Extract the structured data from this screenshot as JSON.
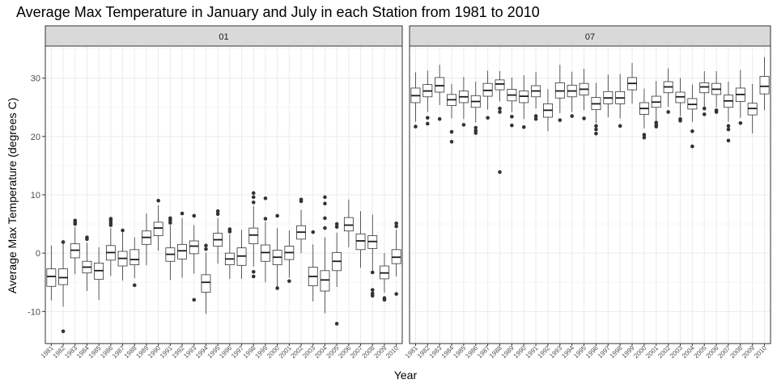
{
  "chart_data": {
    "type": "boxplot",
    "title": "Average Max Temperature in January and July in each Station from 1981 to 2010",
    "xlabel": "Year",
    "ylabel": "Average Max Temperature (degrees C)",
    "ylim": [
      -15.5,
      35.5
    ],
    "yticks": [
      -10,
      0,
      10,
      20,
      30
    ],
    "grid": true,
    "categories": [
      "1981",
      "1982",
      "1983",
      "1984",
      "1985",
      "1986",
      "1987",
      "1988",
      "1989",
      "1990",
      "1991",
      "1992",
      "1993",
      "1994",
      "1995",
      "1996",
      "1997",
      "1998",
      "1999",
      "2000",
      "2001",
      "2002",
      "2003",
      "2004",
      "2005",
      "2006",
      "2007",
      "2008",
      "2009",
      "2010"
    ],
    "panels": [
      {
        "label": "01",
        "boxes": [
          {
            "whislo": -8.1,
            "q1": -5.7,
            "med": -4.0,
            "q3": -2.7,
            "whishi": 1.3,
            "fliers": []
          },
          {
            "whislo": -9.2,
            "q1": -5.4,
            "med": -4.2,
            "q3": -2.7,
            "whishi": 1.6,
            "fliers": [
              -13.4,
              1.9
            ]
          },
          {
            "whislo": -3.6,
            "q1": -0.8,
            "med": 0.5,
            "q3": 1.6,
            "whishi": 4.5,
            "fliers": [
              5.0,
              5.3,
              5.6
            ]
          },
          {
            "whislo": -6.5,
            "q1": -3.4,
            "med": -2.4,
            "q3": -1.4,
            "whishi": 1.8,
            "fliers": [
              2.4,
              2.7
            ]
          },
          {
            "whislo": -8.0,
            "q1": -4.5,
            "med": -3.0,
            "q3": -1.7,
            "whishi": 1.0,
            "fliers": []
          },
          {
            "whislo": -3.9,
            "q1": -1.2,
            "med": 0.1,
            "q3": 1.3,
            "whishi": 4.3,
            "fliers": [
              4.8,
              5.2,
              5.6,
              5.9
            ]
          },
          {
            "whislo": -4.7,
            "q1": -2.2,
            "med": -0.9,
            "q3": 0.3,
            "whishi": 3.6,
            "fliers": [
              3.9
            ]
          },
          {
            "whislo": -4.3,
            "q1": -2.0,
            "med": -1.1,
            "q3": 0.6,
            "whishi": 2.7,
            "fliers": [
              -5.5
            ]
          },
          {
            "whislo": -2.1,
            "q1": 1.5,
            "med": 2.7,
            "q3": 3.8,
            "whishi": 6.8,
            "fliers": []
          },
          {
            "whislo": 0.4,
            "q1": 3.0,
            "med": 4.3,
            "q3": 5.3,
            "whishi": 8.2,
            "fliers": [
              9.0
            ]
          },
          {
            "whislo": -4.6,
            "q1": -1.4,
            "med": -0.2,
            "q3": 0.9,
            "whishi": 4.8,
            "fliers": [
              5.2,
              5.6,
              6.0
            ]
          },
          {
            "whislo": -4.2,
            "q1": -1.0,
            "med": 0.4,
            "q3": 1.5,
            "whishi": 6.0,
            "fliers": [
              6.8
            ]
          },
          {
            "whislo": -3.5,
            "q1": -0.1,
            "med": 1.2,
            "q3": 2.1,
            "whishi": 4.8,
            "fliers": [
              -8.0,
              6.4
            ]
          },
          {
            "whislo": -10.4,
            "q1": -6.7,
            "med": -5.0,
            "q3": -3.7,
            "whishi": 0.1,
            "fliers": [
              0.7,
              1.3
            ]
          },
          {
            "whislo": -1.8,
            "q1": 1.2,
            "med": 2.3,
            "q3": 3.4,
            "whishi": 6.0,
            "fliers": [
              6.7,
              7.2
            ]
          },
          {
            "whislo": -4.4,
            "q1": -2.0,
            "med": -1.0,
            "q3": 0.0,
            "whishi": 3.2,
            "fliers": [
              3.7,
              4.1
            ]
          },
          {
            "whislo": -4.4,
            "q1": -2.1,
            "med": -0.5,
            "q3": 0.9,
            "whishi": 4.0,
            "fliers": []
          },
          {
            "whislo": -2.3,
            "q1": 1.6,
            "med": 3.1,
            "q3": 4.3,
            "whishi": 8.1,
            "fliers": [
              -3.2,
              -4.0,
              8.7,
              9.6,
              10.3
            ]
          },
          {
            "whislo": -5.0,
            "q1": -1.4,
            "med": 0.1,
            "q3": 1.4,
            "whishi": 5.4,
            "fliers": [
              5.9,
              9.4
            ]
          },
          {
            "whislo": -5.7,
            "q1": -2.0,
            "med": -0.7,
            "q3": 0.5,
            "whishi": 4.3,
            "fliers": [
              -6.0,
              6.4
            ]
          },
          {
            "whislo": -4.2,
            "q1": -1.1,
            "med": 0.1,
            "q3": 1.2,
            "whishi": 3.9,
            "fliers": [
              -4.8
            ]
          },
          {
            "whislo": 0.0,
            "q1": 2.4,
            "med": 3.6,
            "q3": 4.7,
            "whishi": 7.4,
            "fliers": [
              8.9,
              9.2
            ]
          },
          {
            "whislo": -8.3,
            "q1": -5.6,
            "med": -4.0,
            "q3": -2.4,
            "whishi": 1.5,
            "fliers": [
              3.6
            ]
          },
          {
            "whislo": -10.3,
            "q1": -6.5,
            "med": -4.6,
            "q3": -3.0,
            "whishi": 2.7,
            "fliers": [
              4.3,
              6.0,
              8.5,
              9.6
            ]
          },
          {
            "whislo": -5.8,
            "q1": -3.0,
            "med": -1.4,
            "q3": 0.1,
            "whishi": 3.5,
            "fliers": [
              -12.1,
              4.5,
              5.0
            ]
          },
          {
            "whislo": 1.0,
            "q1": 3.8,
            "med": 4.8,
            "q3": 6.1,
            "whishi": 9.2,
            "fliers": []
          },
          {
            "whislo": -2.5,
            "q1": 0.6,
            "med": 2.1,
            "q3": 3.3,
            "whishi": 7.2,
            "fliers": []
          },
          {
            "whislo": -2.9,
            "q1": 0.8,
            "med": 2.0,
            "q3": 3.0,
            "whishi": 6.6,
            "fliers": [
              -3.3,
              -6.3,
              -6.9,
              -7.3
            ]
          },
          {
            "whislo": -6.8,
            "q1": -4.4,
            "med": -3.4,
            "q3": -2.2,
            "whishi": 0.0,
            "fliers": [
              -7.7,
              -8.0
            ]
          },
          {
            "whislo": -4.0,
            "q1": -1.8,
            "med": -0.7,
            "q3": 0.6,
            "whishi": 4.0,
            "fliers": [
              -7.0,
              4.6,
              5.1
            ]
          }
        ]
      },
      {
        "label": "07",
        "boxes": [
          {
            "whislo": 22.5,
            "q1": 25.8,
            "med": 27.0,
            "q3": 28.3,
            "whishi": 31.0,
            "fliers": [
              21.7
            ]
          },
          {
            "whislo": 24.2,
            "q1": 26.8,
            "med": 27.8,
            "q3": 28.9,
            "whishi": 31.3,
            "fliers": [
              22.2,
              23.2
            ]
          },
          {
            "whislo": 25.4,
            "q1": 27.6,
            "med": 28.7,
            "q3": 30.1,
            "whishi": 32.3,
            "fliers": [
              23.0
            ]
          },
          {
            "whislo": 23.1,
            "q1": 25.3,
            "med": 26.3,
            "q3": 27.2,
            "whishi": 29.0,
            "fliers": [
              19.1,
              20.8
            ]
          },
          {
            "whislo": 23.0,
            "q1": 25.8,
            "med": 26.8,
            "q3": 27.8,
            "whishi": 30.2,
            "fliers": [
              22.0
            ]
          },
          {
            "whislo": 22.4,
            "q1": 25.0,
            "med": 26.0,
            "q3": 27.0,
            "whishi": 29.4,
            "fliers": [
              20.6,
              21.0,
              21.5
            ]
          },
          {
            "whislo": 24.6,
            "q1": 26.9,
            "med": 27.9,
            "q3": 29.1,
            "whishi": 31.3,
            "fliers": [
              23.2
            ]
          },
          {
            "whislo": 26.0,
            "q1": 28.0,
            "med": 29.0,
            "q3": 29.7,
            "whishi": 31.2,
            "fliers": [
              13.9,
              24.2,
              24.8
            ]
          },
          {
            "whislo": 24.2,
            "q1": 26.1,
            "med": 27.1,
            "q3": 28.1,
            "whishi": 30.1,
            "fliers": [
              21.9,
              23.4
            ]
          },
          {
            "whislo": 23.0,
            "q1": 25.8,
            "med": 26.9,
            "q3": 27.8,
            "whishi": 30.5,
            "fliers": [
              21.6
            ]
          },
          {
            "whislo": 24.8,
            "q1": 26.8,
            "med": 27.8,
            "q3": 28.7,
            "whishi": 31.1,
            "fliers": [
              23.0,
              23.5
            ]
          },
          {
            "whislo": 20.9,
            "q1": 23.3,
            "med": 24.5,
            "q3": 25.6,
            "whishi": 28.1,
            "fliers": []
          },
          {
            "whislo": 24.0,
            "q1": 26.6,
            "med": 27.8,
            "q3": 29.2,
            "whishi": 32.3,
            "fliers": [
              22.8
            ]
          },
          {
            "whislo": 24.2,
            "q1": 26.8,
            "med": 27.8,
            "q3": 28.8,
            "whishi": 31.1,
            "fliers": [
              23.5
            ]
          },
          {
            "whislo": 24.5,
            "q1": 27.1,
            "med": 28.1,
            "q3": 29.1,
            "whishi": 31.6,
            "fliers": [
              23.1
            ]
          },
          {
            "whislo": 22.3,
            "q1": 24.6,
            "med": 25.6,
            "q3": 26.7,
            "whishi": 29.2,
            "fliers": [
              20.5,
              21.2,
              21.8
            ]
          },
          {
            "whislo": 23.3,
            "q1": 25.6,
            "med": 26.6,
            "q3": 27.7,
            "whishi": 30.6,
            "fliers": []
          },
          {
            "whislo": 23.1,
            "q1": 25.6,
            "med": 26.6,
            "q3": 27.7,
            "whishi": 30.7,
            "fliers": [
              21.8
            ]
          },
          {
            "whislo": 25.6,
            "q1": 28.0,
            "med": 29.1,
            "q3": 30.1,
            "whishi": 32.6,
            "fliers": []
          },
          {
            "whislo": 21.4,
            "q1": 23.8,
            "med": 24.8,
            "q3": 25.8,
            "whishi": 28.2,
            "fliers": [
              19.8,
              20.3
            ]
          },
          {
            "whislo": 22.8,
            "q1": 25.0,
            "med": 25.9,
            "q3": 26.9,
            "whishi": 29.5,
            "fliers": [
              21.7,
              22.0,
              22.4
            ]
          },
          {
            "whislo": 25.1,
            "q1": 27.5,
            "med": 28.5,
            "q3": 29.4,
            "whishi": 31.7,
            "fliers": [
              24.2
            ]
          },
          {
            "whislo": 23.5,
            "q1": 25.8,
            "med": 26.8,
            "q3": 27.6,
            "whishi": 30.0,
            "fliers": [
              22.7,
              23.0
            ]
          },
          {
            "whislo": 22.5,
            "q1": 24.7,
            "med": 25.5,
            "q3": 26.5,
            "whishi": 28.9,
            "fliers": [
              18.3,
              20.9
            ]
          },
          {
            "whislo": 25.1,
            "q1": 27.5,
            "med": 28.5,
            "q3": 29.2,
            "whishi": 31.2,
            "fliers": [
              23.8,
              24.8
            ]
          },
          {
            "whislo": 25.0,
            "q1": 27.2,
            "med": 28.1,
            "q3": 29.1,
            "whishi": 31.2,
            "fliers": [
              24.2,
              24.5
            ]
          },
          {
            "whislo": 22.5,
            "q1": 25.0,
            "med": 26.1,
            "q3": 27.1,
            "whishi": 29.4,
            "fliers": [
              19.3,
              21.2,
              21.8
            ]
          },
          {
            "whislo": 23.2,
            "q1": 26.0,
            "med": 27.2,
            "q3": 28.3,
            "whishi": 31.4,
            "fliers": [
              22.3
            ]
          },
          {
            "whislo": 20.5,
            "q1": 23.7,
            "med": 24.8,
            "q3": 25.7,
            "whishi": 29.0,
            "fliers": []
          },
          {
            "whislo": 24.5,
            "q1": 27.3,
            "med": 28.6,
            "q3": 30.3,
            "whishi": 33.6,
            "fliers": []
          }
        ]
      }
    ]
  }
}
